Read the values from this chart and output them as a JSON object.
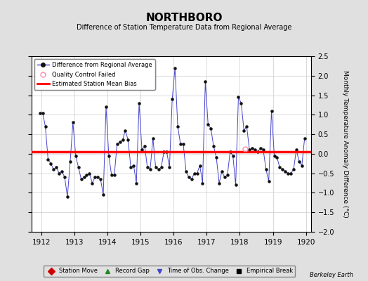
{
  "title": "NORTHBORO",
  "subtitle": "Difference of Station Temperature Data from Regional Average",
  "ylabel": "Monthly Temperature Anomaly Difference (°C)",
  "xlabel_ticks": [
    1912,
    1913,
    1914,
    1915,
    1916,
    1917,
    1918,
    1919,
    1920
  ],
  "ylim": [
    -2.0,
    2.5
  ],
  "yticks": [
    -2.0,
    -1.5,
    -1.0,
    -0.5,
    0.0,
    0.5,
    1.0,
    1.5,
    2.0,
    2.5
  ],
  "bias": 0.05,
  "background_color": "#e0e0e0",
  "plot_bg_color": "#ffffff",
  "line_color": "#4444cc",
  "marker_color": "#111111",
  "bias_color": "#ff0000",
  "qc_fail_x": 1918.17,
  "qc_fail_y": 0.12,
  "watermark": "Berkeley Earth",
  "data_x": [
    1911.958,
    1912.042,
    1912.125,
    1912.208,
    1912.292,
    1912.375,
    1912.458,
    1912.542,
    1912.625,
    1912.708,
    1912.792,
    1912.875,
    1912.958,
    1913.042,
    1913.125,
    1913.208,
    1913.292,
    1913.375,
    1913.458,
    1913.542,
    1913.625,
    1913.708,
    1913.792,
    1913.875,
    1913.958,
    1914.042,
    1914.125,
    1914.208,
    1914.292,
    1914.375,
    1914.458,
    1914.542,
    1914.625,
    1914.708,
    1914.792,
    1914.875,
    1914.958,
    1915.042,
    1915.125,
    1915.208,
    1915.292,
    1915.375,
    1915.458,
    1915.542,
    1915.625,
    1915.708,
    1915.792,
    1915.875,
    1915.958,
    1916.042,
    1916.125,
    1916.208,
    1916.292,
    1916.375,
    1916.458,
    1916.542,
    1916.625,
    1916.708,
    1916.792,
    1916.875,
    1916.958,
    1917.042,
    1917.125,
    1917.208,
    1917.292,
    1917.375,
    1917.458,
    1917.542,
    1917.625,
    1917.708,
    1917.792,
    1917.875,
    1917.958,
    1918.042,
    1918.125,
    1918.208,
    1918.292,
    1918.375,
    1918.458,
    1918.542,
    1918.625,
    1918.708,
    1918.792,
    1918.875,
    1918.958,
    1919.042,
    1919.125,
    1919.208,
    1919.292,
    1919.375,
    1919.458,
    1919.542,
    1919.625,
    1919.708,
    1919.792,
    1919.875,
    1919.958
  ],
  "data_y": [
    1.05,
    1.05,
    0.7,
    -0.15,
    -0.25,
    -0.4,
    -0.35,
    -0.5,
    -0.45,
    -0.6,
    -1.1,
    -0.2,
    0.8,
    -0.05,
    -0.35,
    -0.65,
    -0.6,
    -0.55,
    -0.5,
    -0.75,
    -0.6,
    -0.6,
    -0.65,
    -1.05,
    1.2,
    -0.05,
    -0.55,
    -0.55,
    0.25,
    0.3,
    0.35,
    0.6,
    0.35,
    -0.35,
    -0.3,
    -0.75,
    1.3,
    0.1,
    0.2,
    -0.35,
    -0.4,
    0.4,
    -0.35,
    -0.4,
    -0.35,
    0.05,
    0.05,
    -0.35,
    1.4,
    2.2,
    0.7,
    0.25,
    0.25,
    -0.45,
    -0.6,
    -0.65,
    -0.5,
    -0.5,
    -0.3,
    -0.75,
    1.85,
    0.75,
    0.65,
    0.2,
    -0.1,
    -0.75,
    -0.45,
    -0.6,
    -0.55,
    0.05,
    -0.05,
    -0.8,
    1.45,
    1.3,
    0.6,
    0.7,
    0.1,
    0.15,
    0.1,
    0.05,
    0.15,
    0.1,
    -0.4,
    -0.7,
    1.1,
    -0.05,
    -0.1,
    -0.35,
    -0.4,
    -0.45,
    -0.5,
    -0.5,
    -0.4,
    0.1,
    -0.2,
    -0.3,
    0.4
  ]
}
